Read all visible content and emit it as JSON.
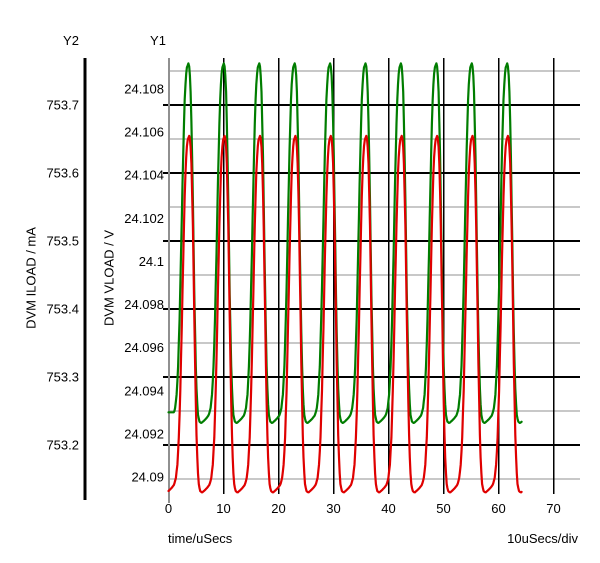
{
  "chart_data": {
    "type": "line",
    "title": "",
    "x_axis": {
      "label": "time/uSecs",
      "per_div": "10uSecs/div",
      "ticks": [
        "0",
        "10",
        "20",
        "30",
        "40",
        "50",
        "60",
        "70"
      ]
    },
    "y_axes": [
      {
        "id": "Y1",
        "title": "Y1",
        "label": "DVM VLOAD / V",
        "ticks": [
          "24.108",
          "24.106",
          "24.104",
          "24.102",
          "24.1",
          "24.098",
          "24.096",
          "24.094",
          "24.092",
          "24.09"
        ]
      },
      {
        "id": "Y2",
        "title": "Y2",
        "label": "DVM ILOAD / mA",
        "ticks": [
          "753.7",
          "753.6",
          "753.5",
          "753.4",
          "753.3",
          "753.2"
        ]
      }
    ],
    "grid": {
      "major_color": "#000000",
      "minor_color": "#c8c8c8",
      "axis1_color": "#909090",
      "axis2_color": "#000000"
    },
    "series": [
      {
        "name": "DVM VLOAD",
        "axis": "Y1",
        "color": "#007d00",
        "period_us": 6.44,
        "first_peak_us": 3.64,
        "start_us": 0,
        "end_us": 64.2,
        "peak": 24.1092,
        "valley": 24.0925,
        "start_hold": 24.093
      },
      {
        "name": "DVM ILOAD",
        "axis": "Y2",
        "color": "#df0000",
        "period_us": 6.44,
        "first_peak_us": 3.78,
        "start_us": 0,
        "end_us": 64.2,
        "peak": 753.655,
        "valley": 753.13
      }
    ],
    "pulse_shape": [
      [
        0,
        1
      ],
      [
        0.03,
        0.985
      ],
      [
        0.06,
        0.92
      ],
      [
        0.095,
        0.78
      ],
      [
        0.13,
        0.57
      ],
      [
        0.165,
        0.35
      ],
      [
        0.2,
        0.175
      ],
      [
        0.235,
        0.07
      ],
      [
        0.27,
        0.02
      ],
      [
        0.31,
        0.004
      ],
      [
        0.36,
        0
      ],
      [
        0.43,
        0.006
      ],
      [
        0.5,
        0.013
      ],
      [
        0.57,
        0.022
      ],
      [
        0.62,
        0.04
      ],
      [
        0.665,
        0.08
      ],
      [
        0.705,
        0.155
      ],
      [
        0.745,
        0.28
      ],
      [
        0.785,
        0.45
      ],
      [
        0.825,
        0.64
      ],
      [
        0.862,
        0.8
      ],
      [
        0.895,
        0.905
      ],
      [
        0.925,
        0.962
      ],
      [
        0.955,
        0.988
      ],
      [
        1,
        1
      ]
    ]
  }
}
